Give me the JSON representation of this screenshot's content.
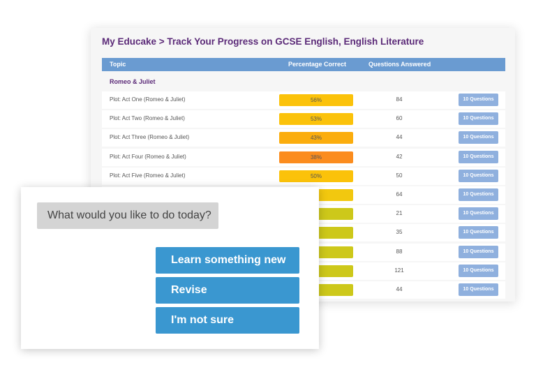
{
  "title": "My Educake > Track Your Progress on GCSE English, English Literature",
  "headers": {
    "topic": "Topic",
    "percentage": "Percentage Correct",
    "answered": "Questions Answered"
  },
  "section": "Romeo & Juliet",
  "rows": [
    {
      "topic": "Plot: Act One (Romeo & Juliet)",
      "percent": "56%",
      "color": "#fbc20a",
      "answered": "84",
      "button": "10 Questions"
    },
    {
      "topic": "Plot: Act Two (Romeo & Juliet)",
      "percent": "53%",
      "color": "#fbc20a",
      "answered": "60",
      "button": "10 Questions"
    },
    {
      "topic": "Plot: Act Three (Romeo & Juliet)",
      "percent": "43%",
      "color": "#fbad0d",
      "answered": "44",
      "button": "10 Questions"
    },
    {
      "topic": "Plot: Act Four (Romeo & Juliet)",
      "percent": "38%",
      "color": "#fb8c1e",
      "answered": "42",
      "button": "10 Questions"
    },
    {
      "topic": "Plot: Act Five (Romeo & Juliet)",
      "percent": "50%",
      "color": "#fbc20a",
      "answered": "50",
      "button": "10 Questions"
    },
    {
      "color": "#f2c80f",
      "answered": "64",
      "button": "10 Questions"
    },
    {
      "color": "#cdc81a",
      "answered": "21",
      "button": "10 Questions"
    },
    {
      "color": "#cdc81a",
      "answered": "35",
      "button": "10 Questions"
    },
    {
      "color": "#cdc81a",
      "answered": "88",
      "button": "10 Questions"
    },
    {
      "color": "#cdc81a",
      "answered": "121",
      "button": "10 Questions"
    },
    {
      "color": "#cdc81a",
      "answered": "44",
      "button": "10 Questions"
    }
  ],
  "chat": {
    "prompt": "What would you like to do today?",
    "options": [
      "Learn something new",
      "Revise",
      "I'm not sure"
    ]
  }
}
